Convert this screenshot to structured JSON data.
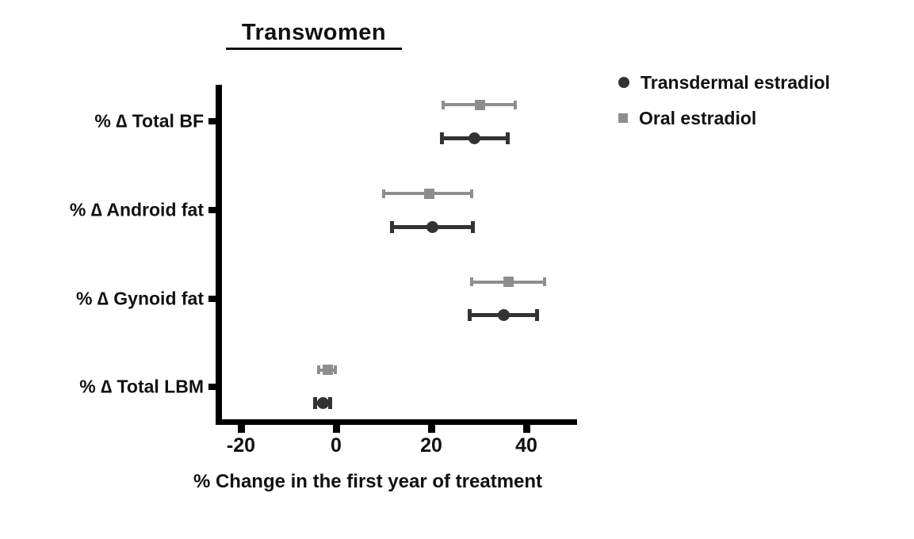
{
  "chart_data": {
    "type": "scatter",
    "subtype": "horizontal-dot-plot-with-error-bars",
    "title": "Transwomen",
    "xlabel": "% Change in the first year of treatment",
    "x_ticks": [
      "-20",
      "0",
      "20",
      "40"
    ],
    "x_tick_values": [
      -20,
      0,
      20,
      40
    ],
    "xlim": [
      -25,
      50.5
    ],
    "grid": false,
    "legend_position": "top-right",
    "categories": [
      "% ∆ Total BF",
      "% ∆ Android fat",
      "% ∆ Gynoid fat",
      "% ∆ Total LBM"
    ],
    "series": [
      {
        "name": "Oral estradiol",
        "marker": "square",
        "color": "#8e8e8e",
        "values": [
          30.2,
          19.5,
          36.2,
          -1.8
        ],
        "ci_low": [
          22.5,
          10.0,
          28.5,
          -3.6
        ],
        "ci_high": [
          37.7,
          28.5,
          43.8,
          -0.2
        ]
      },
      {
        "name": "Transdermal estradiol",
        "marker": "circle",
        "color": "#333333",
        "values": [
          29.0,
          20.3,
          35.3,
          -2.8
        ],
        "ci_low": [
          22.2,
          11.8,
          28.0,
          -4.4
        ],
        "ci_high": [
          36.0,
          28.8,
          42.2,
          -1.2
        ]
      }
    ],
    "colors": {
      "axis": "#000000",
      "text": "#111111",
      "background": "#ffffff",
      "transdermal": "#333333",
      "oral": "#8e8e8e"
    },
    "legend_order": [
      "Transdermal estradiol",
      "Oral estradiol"
    ]
  }
}
